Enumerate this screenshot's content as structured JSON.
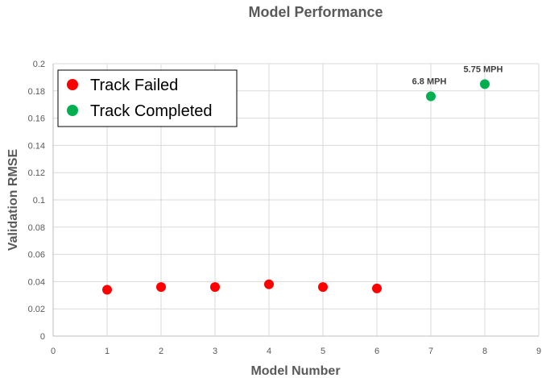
{
  "chart_data": {
    "type": "scatter",
    "title": "Model Performance",
    "xlabel": "Model Number",
    "ylabel": "Validation RMSE",
    "xlim": [
      0,
      9
    ],
    "ylim": [
      0,
      0.2
    ],
    "x_ticks": [
      "0",
      "1",
      "2",
      "3",
      "4",
      "5",
      "6",
      "7",
      "8",
      "9"
    ],
    "y_ticks": [
      "0",
      "0.02",
      "0.04",
      "0.06",
      "0.08",
      "0.1",
      "0.12",
      "0.14",
      "0.16",
      "0.18",
      "0.2"
    ],
    "grid": true,
    "legend_position": "top-left",
    "series": [
      {
        "name": "Track Failed",
        "color": "#ff0000",
        "points": [
          {
            "x": 1,
            "y": 0.034
          },
          {
            "x": 2,
            "y": 0.036
          },
          {
            "x": 3,
            "y": 0.036
          },
          {
            "x": 4,
            "y": 0.038
          },
          {
            "x": 5,
            "y": 0.036
          },
          {
            "x": 6,
            "y": 0.035
          }
        ]
      },
      {
        "name": "Track Completed",
        "color": "#00b050",
        "points": [
          {
            "x": 7,
            "y": 0.176,
            "label": "6.8 MPH"
          },
          {
            "x": 8,
            "y": 0.185,
            "label": "5.75 MPH"
          }
        ]
      }
    ]
  }
}
